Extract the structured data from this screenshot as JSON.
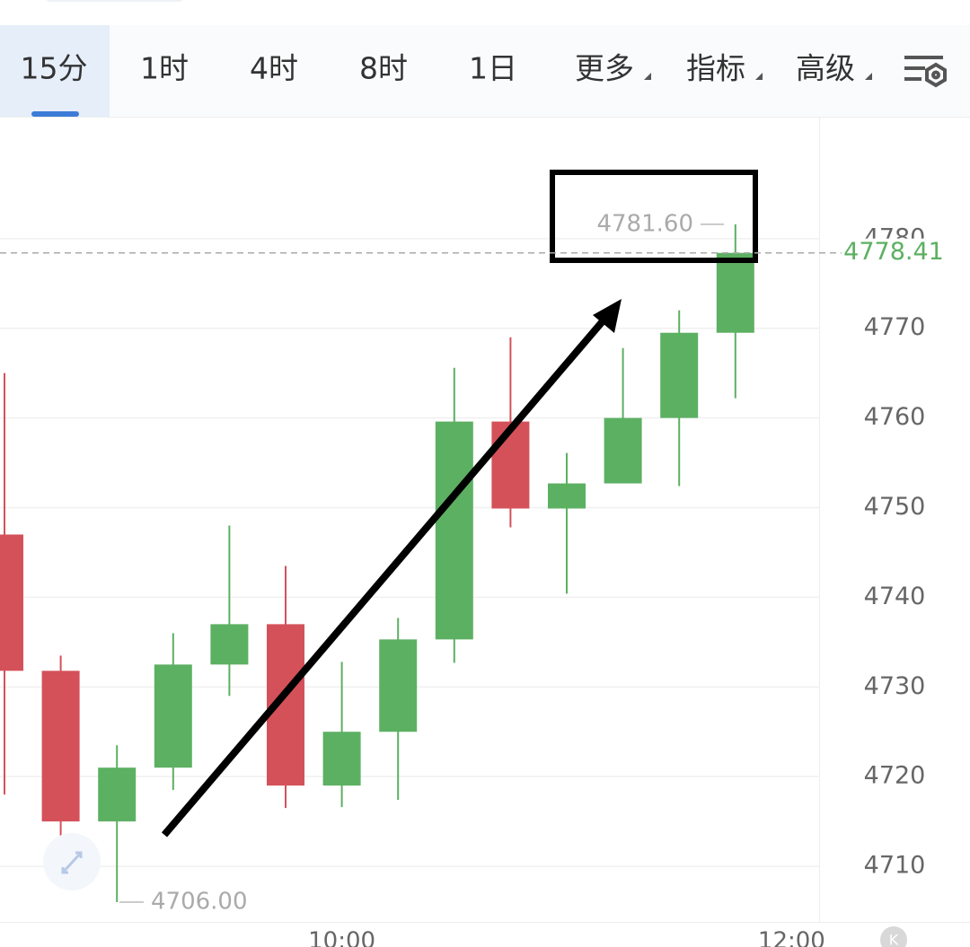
{
  "tabs": [
    "15分",
    "1时",
    "4时",
    "8时",
    "1日",
    "更多",
    "指标",
    "高级"
  ],
  "k_badge": "K",
  "chart_data": {
    "type": "candlestick",
    "categories": [
      null,
      null,
      null,
      null,
      null,
      null,
      "10:00",
      null,
      null,
      null,
      null,
      null,
      null,
      null,
      "12:00"
    ],
    "open": [
      4747,
      4731.8,
      4715,
      4721,
      4732.5,
      4737,
      4719,
      4725,
      4735.3,
      4759.6,
      4749.9,
      4752.7,
      4760,
      4769.5,
      null
    ],
    "high": [
      4765,
      4733.5,
      4723.5,
      4736,
      4748,
      4743.5,
      4732.8,
      4737.7,
      4765.6,
      4769,
      4756.1,
      4767.8,
      4772,
      4781.6,
      null
    ],
    "low": [
      4718,
      4710.5,
      4706,
      4718.5,
      4729,
      4716.5,
      4716.6,
      4717.4,
      4732.7,
      4747.8,
      4740.4,
      4752.7,
      4752.4,
      4762.2,
      null
    ],
    "close": [
      4731.8,
      4715,
      4721,
      4732.5,
      4737,
      4719,
      4725,
      4735.3,
      4759.6,
      4749.9,
      4752.7,
      4760,
      4769.5,
      4778.41,
      null
    ],
    "up_color": "#5cb062",
    "down_color": "#d4515a",
    "ylim": [
      4703.8,
      4793.5
    ],
    "yticks": [
      4710,
      4720,
      4730,
      4740,
      4750,
      4760,
      4770,
      4780
    ],
    "grid": true,
    "last_price": 4778.41,
    "annotations": [
      {
        "value": 4781.6,
        "label": "4781.60"
      },
      {
        "value": 4706,
        "label": "4706.00"
      }
    ]
  }
}
